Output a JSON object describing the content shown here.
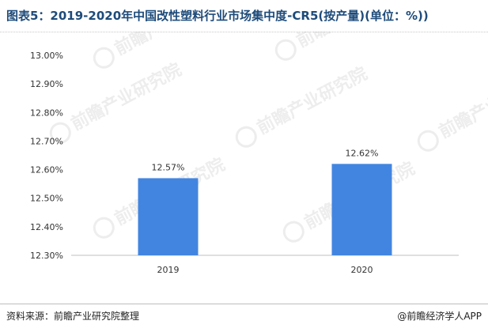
{
  "header": {
    "title": "图表5：2019-2020年中国改性塑料行业市场集中度-CR5(按产量)(单位：%))"
  },
  "footer": {
    "source": "资料来源：前瞻产业研究院整理",
    "brand": "@前瞻经济学人APP"
  },
  "watermark": {
    "text": "前瞻产业研究院"
  },
  "colors": {
    "bar": "#4285e0",
    "title": "#1e4b7a",
    "axis": "#bfbfbf",
    "text": "#333333"
  },
  "chart_data": {
    "type": "bar",
    "categories": [
      "2019",
      "2020"
    ],
    "values": [
      12.57,
      12.62
    ],
    "value_labels": [
      "12.57%",
      "12.62%"
    ],
    "title": "图表5：2019-2020年中国改性塑料行业市场集中度-CR5(按产量)(单位：%))",
    "xlabel": "",
    "ylabel": "",
    "ylim": [
      12.3,
      13.0
    ],
    "yticks": [
      12.3,
      12.4,
      12.5,
      12.6,
      12.7,
      12.8,
      12.9,
      13.0
    ],
    "ytick_labels": [
      "12.30%",
      "12.40%",
      "12.50%",
      "12.60%",
      "12.70%",
      "12.80%",
      "12.90%",
      "13.00%"
    ],
    "grid": false,
    "legend": "none"
  }
}
